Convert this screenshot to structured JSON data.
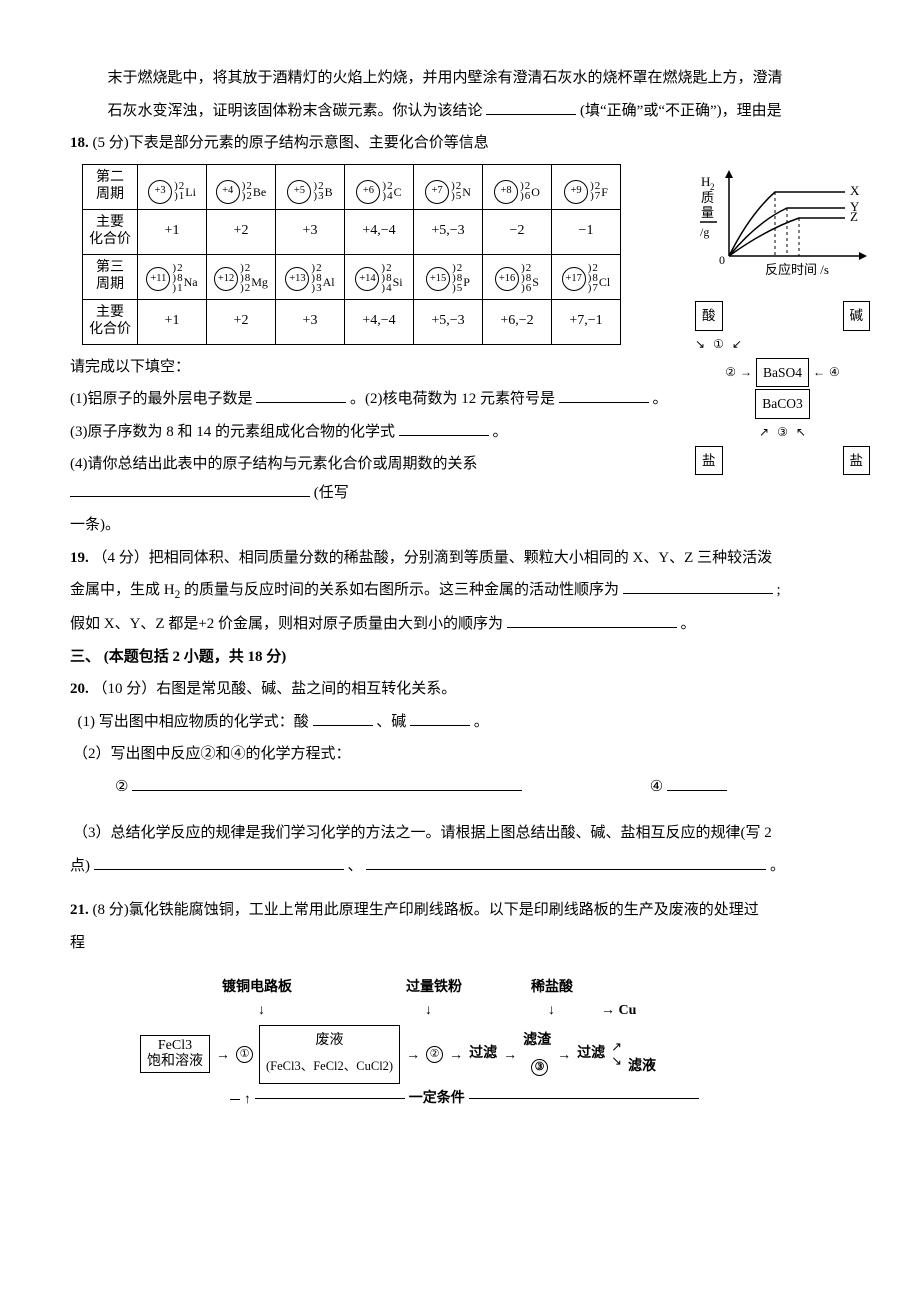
{
  "intro_continuation": {
    "para1": "末于燃烧匙中，将其放于酒精灯的火焰上灼烧，并用内壁涂有澄清石灰水的烧杯罩在燃烧匙上方，澄清",
    "para2_a": "石灰水变浑浊，证明该固体粉末含碳元素。你认为该结论",
    "para2_b": " (填“正确”或“不正确”)，理由是"
  },
  "q18": {
    "num": "18.",
    "stem": "(5 分)下表是部分元素的原子结构示意图、主要化合价等信息",
    "table": {
      "row_labels": [
        "第二\n周期",
        "主要\n化合价",
        "第三\n周期",
        "主要\n化合价"
      ],
      "period2": [
        {
          "z": "+3",
          "shells": [
            "2",
            "1"
          ],
          "sym": "Li"
        },
        {
          "z": "+4",
          "shells": [
            "2",
            "2"
          ],
          "sym": "Be"
        },
        {
          "z": "+5",
          "shells": [
            "2",
            "3"
          ],
          "sym": "B"
        },
        {
          "z": "+6",
          "shells": [
            "2",
            "4"
          ],
          "sym": "C"
        },
        {
          "z": "+7",
          "shells": [
            "2",
            "5"
          ],
          "sym": "N"
        },
        {
          "z": "+8",
          "shells": [
            "2",
            "6"
          ],
          "sym": "O"
        },
        {
          "z": "+9",
          "shells": [
            "2",
            "7"
          ],
          "sym": "F"
        }
      ],
      "valence2": [
        "+1",
        "+2",
        "+3",
        "+4,−4",
        "+5,−3",
        "−2",
        "−1"
      ],
      "period3": [
        {
          "z": "+11",
          "shells": [
            "2",
            "8",
            "1"
          ],
          "sym": "Na"
        },
        {
          "z": "+12",
          "shells": [
            "2",
            "8",
            "2"
          ],
          "sym": "Mg"
        },
        {
          "z": "+13",
          "shells": [
            "2",
            "8",
            "3"
          ],
          "sym": "Al"
        },
        {
          "z": "+14",
          "shells": [
            "2",
            "8",
            "4"
          ],
          "sym": "Si"
        },
        {
          "z": "+15",
          "shells": [
            "2",
            "8",
            "5"
          ],
          "sym": "P"
        },
        {
          "z": "+16",
          "shells": [
            "2",
            "8",
            "6"
          ],
          "sym": "S"
        },
        {
          "z": "+17",
          "shells": [
            "2",
            "8",
            "7"
          ],
          "sym": "Cl"
        }
      ],
      "valence3": [
        "+1",
        "+2",
        "+3",
        "+4,−4",
        "+5,−3",
        "+6,−2",
        "+7,−1"
      ]
    },
    "after": "请完成以下填空：",
    "s1a": "(1)铝原子的最外层电子数是",
    "s1b": "。(2)核电荷数为 12 元素符号是",
    "s1c": "。",
    "s3a": "(3)原子序数为 8 和 14 的元素组成化合物的化学式",
    "s3b": "。",
    "s4a": "(4)请你总结出此表中的原子结构与元素化合价或周期数的关系",
    "s4b": "(任写",
    "s4c": "一条)。"
  },
  "fig_h2": {
    "ylabel1": "H",
    "ylabel2": "2",
    "ylabel3": "质",
    "ylabel4": "量",
    "yunit": "/g",
    "xaxis": "反应时间 /s",
    "lines": [
      "X",
      "Y",
      "Z"
    ],
    "style": {
      "axis_color": "#000000",
      "line_color": "#000000",
      "label_fontsize": 12,
      "xlim": [
        0,
        10
      ],
      "ylim": [
        0,
        10
      ]
    }
  },
  "fig_conv": {
    "acid": "酸",
    "base": "碱",
    "baso4": "BaSO4",
    "baco3": "BaCO3",
    "salt_l": "盐",
    "salt_r": "盐",
    "nums": [
      "①",
      "②",
      "③",
      "④"
    ]
  },
  "q19": {
    "num": "19.",
    "line1a": "（4 分）把相同体积、相同质量分数的稀盐酸，分别滴到等质量、颗粒大小相同的 X、Y、Z 三种较活泼",
    "line2a": "金属中，生成 H",
    "line2b": " 的质量与反应时间的关系如右图所示。这三种金属的活动性顺序为",
    "line2c": ";",
    "line3a": "假如 X、Y、Z 都是+2 价金属，则相对原子质量由大到小的顺序为",
    "line3b": "。",
    "h2_sub": "2"
  },
  "section3": {
    "title": "三、 (本题包括 2 小题，共 18 分)"
  },
  "q20": {
    "num": "20.",
    "stem": "（10 分）右图是常见酸、碱、盐之间的相互转化关系。",
    "s1a": "(1)  写出图中相应物质的化学式：酸",
    "s1b": "、碱",
    "s1c": "。",
    "s2": "（2）写出图中反应②和④的化学方程式：",
    "s2_2": "②",
    "s2_4": "④",
    "s3a": "（3）总结化学反应的规律是我们学习化学的方法之一。请根据上图总结出酸、碱、盐相互反应的规律(写 2",
    "s3b": "点)",
    "s3c": "、",
    "s3d": "。"
  },
  "q21": {
    "num": "21.",
    "stem_a": "(8 分)氯化铁能腐蚀铜，工业上常用此原理生产印刷线路板。以下是印刷线路板的生产及废液的处理过",
    "stem_b": "程",
    "flow": {
      "top_labels": [
        "镀铜电路板",
        "过量铁粉",
        "稀盐酸"
      ],
      "fecl3_box_l1": "FeCl3",
      "fecl3_box_l2": "饱和溶液",
      "waste": "废液",
      "waste_comp": "(FeCl3、FeCl2、CuCl2)",
      "filter": "过滤",
      "residue": "滤渣",
      "cu": "Cu",
      "filtrate": "滤液",
      "cond": "一定条件",
      "nums": [
        "①",
        "②",
        "③"
      ]
    }
  }
}
